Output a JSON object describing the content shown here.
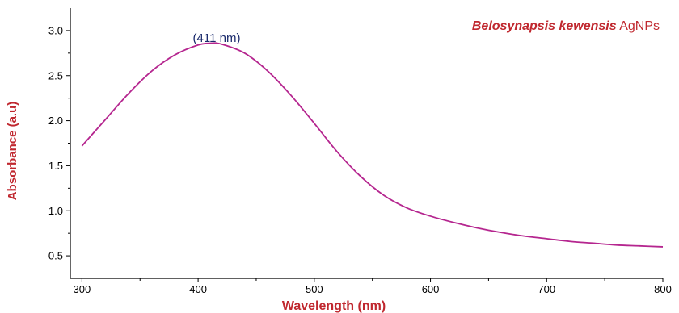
{
  "chart_data": {
    "type": "line",
    "xlabel": "Wavelength (nm)",
    "ylabel": "Absorbance (a.u)",
    "xlim": [
      290,
      800
    ],
    "ylim": [
      0.25,
      3.25
    ],
    "x_ticks": [
      300,
      400,
      500,
      600,
      700,
      800
    ],
    "y_ticks": [
      0.5,
      1.0,
      1.5,
      2.0,
      2.5,
      3.0
    ],
    "x_tick_labels": [
      "300",
      "400",
      "500",
      "600",
      "700",
      "800"
    ],
    "y_tick_labels": [
      "0.5",
      "1.0",
      "1.5",
      "2.0",
      "2.5",
      "3.0"
    ],
    "legend": {
      "italic": "Belosynapsis kewensis",
      "plain": " AgNPs",
      "placement": "top-right"
    },
    "annotations": [
      {
        "text": "(411 nm)",
        "x": 411,
        "y": 2.86
      }
    ],
    "line_color": "#b5268f",
    "series": [
      {
        "x": [
          300,
          320,
          340,
          360,
          380,
          400,
          411,
          420,
          440,
          460,
          480,
          500,
          520,
          540,
          560,
          580,
          600,
          620,
          640,
          660,
          680,
          700,
          720,
          740,
          760,
          780,
          800
        ],
        "values": [
          1.72,
          2.01,
          2.3,
          2.55,
          2.73,
          2.84,
          2.86,
          2.85,
          2.75,
          2.55,
          2.28,
          1.97,
          1.65,
          1.38,
          1.17,
          1.03,
          0.94,
          0.87,
          0.81,
          0.76,
          0.72,
          0.69,
          0.66,
          0.64,
          0.62,
          0.61,
          0.6
        ]
      }
    ]
  }
}
